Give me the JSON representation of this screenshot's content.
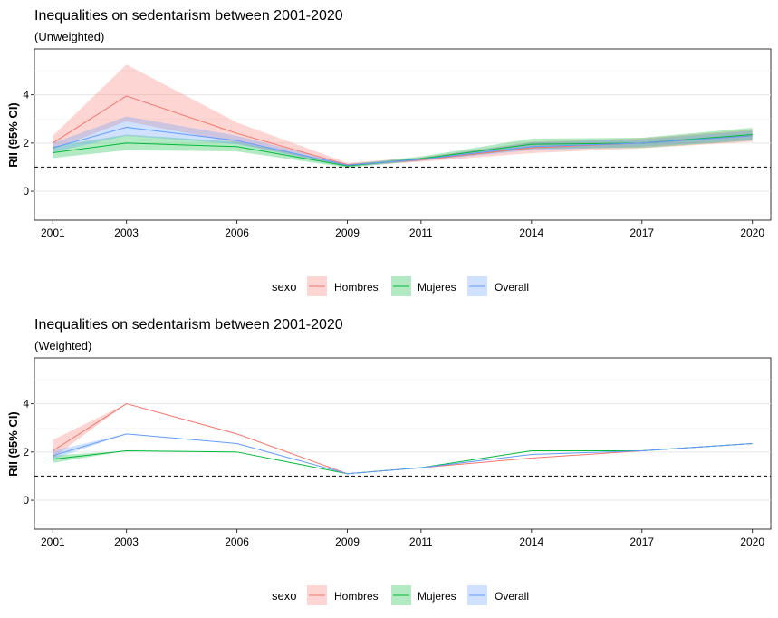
{
  "chart_data": [
    {
      "type": "line",
      "title": "Inequalities on sedentarism between 2001-2020",
      "subtitle": "(Unweighted)",
      "xlabel": "",
      "ylabel": "RII (95% CI)",
      "xlim": [
        2000.5,
        2020.5
      ],
      "ylim": [
        -1.2,
        5.9
      ],
      "x_ticks": [
        2001,
        2003,
        2006,
        2009,
        2011,
        2014,
        2017,
        2020
      ],
      "y_ticks": [
        0,
        2,
        4
      ],
      "reference_line": 1,
      "grid": true,
      "legend": {
        "title": "sexo",
        "position": "bottom",
        "entries": [
          "Hombres",
          "Mujeres",
          "Overall"
        ]
      },
      "colors": {
        "Hombres": "#F8766D",
        "Mujeres": "#00BA38",
        "Overall": "#619CFF"
      },
      "x": [
        2001,
        2003,
        2006,
        2009,
        2011,
        2014,
        2017,
        2020
      ],
      "series": [
        {
          "name": "Hombres",
          "values": [
            2.0,
            3.95,
            2.4,
            1.1,
            1.3,
            1.8,
            2.0,
            2.3
          ],
          "lower": [
            1.75,
            2.9,
            2.0,
            1.03,
            1.22,
            1.58,
            1.78,
            2.05
          ],
          "upper": [
            2.3,
            5.25,
            2.85,
            1.18,
            1.4,
            2.05,
            2.2,
            2.55
          ]
        },
        {
          "name": "Mujeres",
          "values": [
            1.6,
            2.0,
            1.85,
            1.05,
            1.35,
            1.95,
            2.0,
            2.35
          ],
          "lower": [
            1.38,
            1.7,
            1.65,
            0.98,
            1.27,
            1.76,
            1.8,
            2.1
          ],
          "upper": [
            1.85,
            2.35,
            2.05,
            1.12,
            1.44,
            2.18,
            2.22,
            2.63
          ]
        },
        {
          "name": "Overall",
          "values": [
            1.8,
            2.65,
            2.1,
            1.08,
            1.32,
            1.85,
            2.0,
            2.3
          ],
          "lower": [
            1.62,
            2.3,
            1.95,
            1.03,
            1.26,
            1.7,
            1.85,
            2.12
          ],
          "upper": [
            2.0,
            3.1,
            2.3,
            1.14,
            1.38,
            2.02,
            2.15,
            2.5
          ]
        }
      ]
    },
    {
      "type": "line",
      "title": "Inequalities on sedentarism between 2001-2020",
      "subtitle": "(Weighted)",
      "xlabel": "",
      "ylabel": "RII (95% CI)",
      "xlim": [
        2000.5,
        2020.5
      ],
      "ylim": [
        -1.2,
        5.9
      ],
      "x_ticks": [
        2001,
        2003,
        2006,
        2009,
        2011,
        2014,
        2017,
        2020
      ],
      "y_ticks": [
        0,
        2,
        4
      ],
      "reference_line": 1,
      "grid": true,
      "legend": {
        "title": "sexo",
        "position": "bottom",
        "entries": [
          "Hombres",
          "Mujeres",
          "Overall"
        ]
      },
      "colors": {
        "Hombres": "#F8766D",
        "Mujeres": "#00BA38",
        "Overall": "#619CFF"
      },
      "x": [
        2001,
        2003,
        2006,
        2009,
        2011,
        2014,
        2017,
        2020
      ],
      "series": [
        {
          "name": "Hombres",
          "values": [
            2.05,
            4.0,
            2.75,
            1.1,
            1.35,
            1.75,
            2.05,
            2.35
          ],
          "lower": [
            1.75,
            4.0,
            2.75,
            1.1,
            1.35,
            1.75,
            2.05,
            2.35
          ],
          "upper": [
            2.5,
            4.0,
            2.75,
            1.1,
            1.35,
            1.75,
            2.05,
            2.35
          ]
        },
        {
          "name": "Mujeres",
          "values": [
            1.7,
            2.05,
            2.0,
            1.1,
            1.35,
            2.05,
            2.05,
            2.35
          ],
          "lower": [
            1.55,
            2.05,
            2.0,
            1.1,
            1.35,
            2.05,
            2.05,
            2.35
          ],
          "upper": [
            1.85,
            2.05,
            2.0,
            1.1,
            1.35,
            2.05,
            2.05,
            2.35
          ]
        },
        {
          "name": "Overall",
          "values": [
            1.85,
            2.75,
            2.35,
            1.1,
            1.35,
            1.9,
            2.05,
            2.35
          ],
          "lower": [
            1.7,
            2.75,
            2.35,
            1.1,
            1.35,
            1.9,
            2.05,
            2.35
          ],
          "upper": [
            2.05,
            2.75,
            2.35,
            1.1,
            1.35,
            1.9,
            2.05,
            2.35
          ]
        }
      ]
    }
  ]
}
